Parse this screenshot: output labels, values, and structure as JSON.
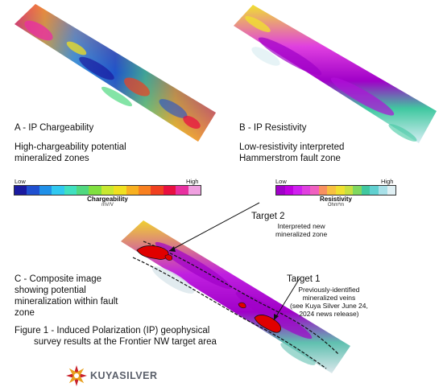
{
  "panels": {
    "a": {
      "title": "A - IP Chargeability",
      "description_line1": "High-chargeability potential",
      "description_line2": "mineralized zones",
      "colorbar": {
        "low": "Low",
        "high": "High",
        "title": "Chargeability",
        "unit": "mV/V",
        "colors": [
          "#1a1aa0",
          "#2050d0",
          "#2090e8",
          "#30c8f0",
          "#40e0c0",
          "#50d880",
          "#80e040",
          "#c8e830",
          "#f0e020",
          "#f8b020",
          "#f88020",
          "#f04020",
          "#e81040",
          "#e830a0",
          "#f0a0e0"
        ]
      }
    },
    "b": {
      "title": "B - IP Resistivity",
      "description_line1": "Low-resistivity interpreted",
      "description_line2": "Hammerstrom fault zone",
      "colorbar": {
        "low": "Low",
        "high": "High",
        "title": "Resistivity",
        "unit": "Ohm*m",
        "colors": [
          "#a000c8",
          "#c000e0",
          "#d020f0",
          "#e040e0",
          "#f060c0",
          "#f89060",
          "#f8c040",
          "#f0e030",
          "#c8e040",
          "#80d860",
          "#40c8a0",
          "#60d0d0",
          "#a8e0e8",
          "#e0f0f4"
        ]
      }
    },
    "c": {
      "title_line1": "C - Composite image",
      "title_line2": "showing potential",
      "title_line3": "mineralization within fault",
      "title_line4": "zone"
    }
  },
  "targets": {
    "target2": {
      "label": "Target 2",
      "note_line1": "Interpreted new",
      "note_line2": "mineralized zone"
    },
    "target1": {
      "label": "Target 1",
      "note_line1": "Previously-identified",
      "note_line2": "mineralized veins",
      "note_line3": "(see Kuya Silver June 24,",
      "note_line4": "2024 news release)"
    }
  },
  "figure_caption": {
    "line1": "Figure 1 - Induced Polarization (IP) geophysical",
    "line2": "survey results at the Frontier NW target area"
  },
  "logo": {
    "text": "KUYASILVER",
    "icon": "kuya-silver-star-logo-icon"
  }
}
